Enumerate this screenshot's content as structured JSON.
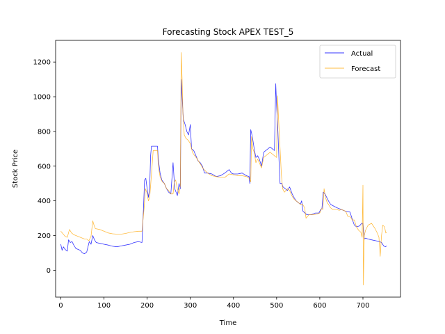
{
  "chart_data": {
    "type": "line",
    "title": "Forecasting Stock APEX TEST_5",
    "xlabel": "Time",
    "ylabel": "Stock Price",
    "xlim": [
      -12,
      787
    ],
    "ylim": [
      -155,
      1325
    ],
    "xticks": [
      0,
      100,
      200,
      300,
      400,
      500,
      600,
      700
    ],
    "yticks": [
      0,
      200,
      400,
      600,
      800,
      1000,
      1200
    ],
    "grid": false,
    "legend_position": "upper right",
    "series": [
      {
        "name": "Actual",
        "color": "#0000ff",
        "points": [
          [
            0,
            150
          ],
          [
            3,
            115
          ],
          [
            6,
            135
          ],
          [
            10,
            120
          ],
          [
            15,
            110
          ],
          [
            18,
            175
          ],
          [
            22,
            160
          ],
          [
            26,
            165
          ],
          [
            30,
            145
          ],
          [
            35,
            125
          ],
          [
            40,
            120
          ],
          [
            45,
            115
          ],
          [
            50,
            100
          ],
          [
            55,
            95
          ],
          [
            60,
            105
          ],
          [
            66,
            165
          ],
          [
            70,
            150
          ],
          [
            74,
            200
          ],
          [
            78,
            175
          ],
          [
            82,
            160
          ],
          [
            90,
            155
          ],
          [
            100,
            150
          ],
          [
            110,
            145
          ],
          [
            120,
            138
          ],
          [
            130,
            135
          ],
          [
            140,
            140
          ],
          [
            150,
            145
          ],
          [
            160,
            150
          ],
          [
            170,
            160
          ],
          [
            180,
            165
          ],
          [
            188,
            160
          ],
          [
            192,
            380
          ],
          [
            194,
            520
          ],
          [
            197,
            530
          ],
          [
            200,
            470
          ],
          [
            203,
            420
          ],
          [
            206,
            480
          ],
          [
            208,
            660
          ],
          [
            210,
            715
          ],
          [
            215,
            715
          ],
          [
            220,
            715
          ],
          [
            224,
            715
          ],
          [
            226,
            640
          ],
          [
            230,
            560
          ],
          [
            234,
            520
          ],
          [
            240,
            500
          ],
          [
            245,
            470
          ],
          [
            250,
            450
          ],
          [
            255,
            440
          ],
          [
            260,
            620
          ],
          [
            264,
            470
          ],
          [
            270,
            430
          ],
          [
            274,
            500
          ],
          [
            277,
            470
          ],
          [
            279,
            1100
          ],
          [
            281,
            1000
          ],
          [
            284,
            870
          ],
          [
            288,
            840
          ],
          [
            292,
            800
          ],
          [
            296,
            780
          ],
          [
            300,
            840
          ],
          [
            303,
            700
          ],
          [
            308,
            690
          ],
          [
            313,
            660
          ],
          [
            318,
            630
          ],
          [
            323,
            620
          ],
          [
            328,
            600
          ],
          [
            333,
            560
          ],
          [
            340,
            560
          ],
          [
            350,
            555
          ],
          [
            360,
            540
          ],
          [
            370,
            545
          ],
          [
            380,
            560
          ],
          [
            390,
            580
          ],
          [
            395,
            560
          ],
          [
            400,
            555
          ],
          [
            410,
            555
          ],
          [
            420,
            560
          ],
          [
            430,
            545
          ],
          [
            436,
            540
          ],
          [
            438,
            500
          ],
          [
            440,
            810
          ],
          [
            442,
            790
          ],
          [
            445,
            750
          ],
          [
            448,
            700
          ],
          [
            452,
            650
          ],
          [
            456,
            660
          ],
          [
            460,
            640
          ],
          [
            465,
            600
          ],
          [
            470,
            680
          ],
          [
            475,
            690
          ],
          [
            480,
            700
          ],
          [
            485,
            710
          ],
          [
            490,
            700
          ],
          [
            495,
            690
          ],
          [
            498,
            1075
          ],
          [
            500,
            950
          ],
          [
            503,
            800
          ],
          [
            506,
            600
          ],
          [
            508,
            500
          ],
          [
            512,
            500
          ],
          [
            515,
            480
          ],
          [
            520,
            470
          ],
          [
            525,
            460
          ],
          [
            530,
            480
          ],
          [
            536,
            440
          ],
          [
            540,
            420
          ],
          [
            545,
            400
          ],
          [
            550,
            390
          ],
          [
            555,
            380
          ],
          [
            558,
            400
          ],
          [
            561,
            340
          ],
          [
            570,
            320
          ],
          [
            580,
            320
          ],
          [
            590,
            330
          ],
          [
            598,
            330
          ],
          [
            602,
            350
          ],
          [
            605,
            355
          ],
          [
            608,
            450
          ],
          [
            612,
            440
          ],
          [
            616,
            420
          ],
          [
            620,
            400
          ],
          [
            625,
            380
          ],
          [
            632,
            370
          ],
          [
            640,
            360
          ],
          [
            650,
            350
          ],
          [
            660,
            340
          ],
          [
            670,
            335
          ],
          [
            675,
            295
          ],
          [
            680,
            260
          ],
          [
            685,
            250
          ],
          [
            692,
            255
          ],
          [
            697,
            270
          ],
          [
            700,
            270
          ],
          [
            703,
            180
          ],
          [
            706,
            185
          ],
          [
            712,
            180
          ],
          [
            720,
            175
          ],
          [
            730,
            170
          ],
          [
            738,
            165
          ],
          [
            743,
            160
          ],
          [
            748,
            140
          ],
          [
            752,
            135
          ],
          [
            755,
            140
          ]
        ]
      },
      {
        "name": "Forecast",
        "color": "#ffa500",
        "points": [
          [
            0,
            225
          ],
          [
            5,
            210
          ],
          [
            10,
            195
          ],
          [
            15,
            190
          ],
          [
            20,
            235
          ],
          [
            25,
            215
          ],
          [
            30,
            205
          ],
          [
            35,
            200
          ],
          [
            40,
            195
          ],
          [
            45,
            190
          ],
          [
            50,
            185
          ],
          [
            55,
            180
          ],
          [
            60,
            180
          ],
          [
            65,
            170
          ],
          [
            70,
            195
          ],
          [
            74,
            285
          ],
          [
            77,
            260
          ],
          [
            80,
            240
          ],
          [
            90,
            235
          ],
          [
            100,
            225
          ],
          [
            110,
            215
          ],
          [
            120,
            210
          ],
          [
            130,
            208
          ],
          [
            140,
            208
          ],
          [
            150,
            212
          ],
          [
            160,
            218
          ],
          [
            170,
            222
          ],
          [
            180,
            225
          ],
          [
            188,
            225
          ],
          [
            193,
            360
          ],
          [
            196,
            470
          ],
          [
            199,
            450
          ],
          [
            203,
            400
          ],
          [
            206,
            420
          ],
          [
            210,
            550
          ],
          [
            214,
            690
          ],
          [
            220,
            690
          ],
          [
            224,
            690
          ],
          [
            226,
            600
          ],
          [
            230,
            540
          ],
          [
            235,
            510
          ],
          [
            240,
            500
          ],
          [
            245,
            470
          ],
          [
            250,
            460
          ],
          [
            255,
            440
          ],
          [
            260,
            440
          ],
          [
            263,
            510
          ],
          [
            266,
            520
          ],
          [
            270,
            470
          ],
          [
            274,
            440
          ],
          [
            277,
            490
          ],
          [
            279,
            1255
          ],
          [
            281,
            1100
          ],
          [
            283,
            900
          ],
          [
            286,
            780
          ],
          [
            290,
            760
          ],
          [
            295,
            750
          ],
          [
            300,
            730
          ],
          [
            305,
            680
          ],
          [
            310,
            660
          ],
          [
            315,
            645
          ],
          [
            320,
            625
          ],
          [
            330,
            585
          ],
          [
            340,
            560
          ],
          [
            350,
            545
          ],
          [
            360,
            540
          ],
          [
            370,
            535
          ],
          [
            380,
            535
          ],
          [
            390,
            555
          ],
          [
            400,
            550
          ],
          [
            410,
            545
          ],
          [
            420,
            545
          ],
          [
            430,
            540
          ],
          [
            436,
            530
          ],
          [
            440,
            510
          ],
          [
            442,
            770
          ],
          [
            445,
            700
          ],
          [
            448,
            680
          ],
          [
            452,
            620
          ],
          [
            456,
            640
          ],
          [
            460,
            620
          ],
          [
            465,
            590
          ],
          [
            470,
            650
          ],
          [
            475,
            660
          ],
          [
            480,
            670
          ],
          [
            485,
            680
          ],
          [
            490,
            670
          ],
          [
            495,
            660
          ],
          [
            500,
            650
          ],
          [
            502,
            1005
          ],
          [
            505,
            850
          ],
          [
            508,
            700
          ],
          [
            511,
            550
          ],
          [
            514,
            470
          ],
          [
            518,
            450
          ],
          [
            525,
            470
          ],
          [
            530,
            460
          ],
          [
            535,
            430
          ],
          [
            540,
            410
          ],
          [
            545,
            400
          ],
          [
            550,
            390
          ],
          [
            555,
            380
          ],
          [
            560,
            380
          ],
          [
            565,
            360
          ],
          [
            568,
            300
          ],
          [
            575,
            320
          ],
          [
            585,
            320
          ],
          [
            595,
            325
          ],
          [
            600,
            330
          ],
          [
            604,
            355
          ],
          [
            607,
            350
          ],
          [
            610,
            470
          ],
          [
            613,
            420
          ],
          [
            617,
            390
          ],
          [
            620,
            380
          ],
          [
            625,
            360
          ],
          [
            630,
            350
          ],
          [
            640,
            350
          ],
          [
            645,
            345
          ],
          [
            650,
            350
          ],
          [
            660,
            340
          ],
          [
            665,
            310
          ],
          [
            670,
            310
          ],
          [
            675,
            290
          ],
          [
            680,
            290
          ],
          [
            685,
            250
          ],
          [
            690,
            230
          ],
          [
            695,
            220
          ],
          [
            698,
            190
          ],
          [
            700,
            490
          ],
          [
            701,
            -85
          ],
          [
            703,
            200
          ],
          [
            706,
            230
          ],
          [
            712,
            260
          ],
          [
            720,
            270
          ],
          [
            728,
            240
          ],
          [
            734,
            210
          ],
          [
            737,
            190
          ],
          [
            740,
            80
          ],
          [
            743,
            200
          ],
          [
            746,
            260
          ],
          [
            750,
            250
          ],
          [
            753,
            215
          ],
          [
            755,
            220
          ]
        ]
      }
    ]
  }
}
